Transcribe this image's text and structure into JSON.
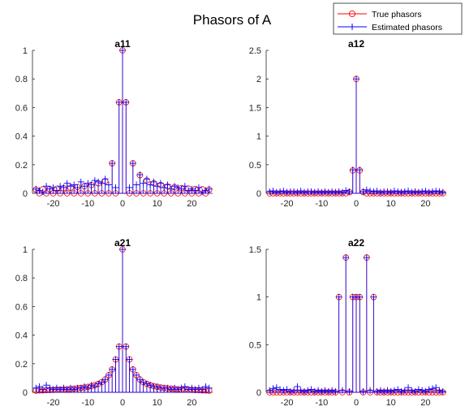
{
  "figure": {
    "title": "Phasors of A",
    "legend": {
      "placement": "top-right",
      "entries": [
        "True phasors",
        "Estimated phasors"
      ]
    },
    "colors": {
      "true": "#ff0000",
      "estimated": "#0000ff",
      "axis": "#262626"
    }
  },
  "chart_data": [
    {
      "type": "stem",
      "title": "a11",
      "xlabel": "",
      "ylabel": "",
      "xlim": [
        -26,
        26
      ],
      "ylim": [
        0,
        1
      ],
      "xticks": [
        -20,
        -10,
        0,
        10,
        20
      ],
      "yticks": [
        0,
        0.2,
        0.4,
        0.6,
        0.8,
        1
      ],
      "ytick_labels": [
        "0",
        "0.2",
        "0.4",
        "0.6",
        "0.8",
        "1"
      ],
      "grid": false,
      "series": [
        {
          "name": "True phasors",
          "marker": "circle",
          "x": [
            -25,
            -24,
            -23,
            -22,
            -21,
            -20,
            -19,
            -18,
            -17,
            -16,
            -15,
            -14,
            -13,
            -12,
            -11,
            -10,
            -9,
            -8,
            -7,
            -6,
            -5,
            -4,
            -3,
            -2,
            -1,
            0,
            1,
            2,
            3,
            4,
            5,
            6,
            7,
            8,
            9,
            10,
            11,
            12,
            13,
            14,
            15,
            16,
            17,
            18,
            19,
            20,
            21,
            22,
            23,
            24,
            25
          ],
          "y": [
            0.026,
            0,
            0.028,
            0,
            0.03,
            0,
            0.032,
            0,
            0.036,
            0,
            0.039,
            0,
            0.044,
            0,
            0.05,
            0,
            0.058,
            0,
            0.07,
            0,
            0.085,
            0,
            0.21,
            0,
            0.637,
            1,
            0.637,
            0,
            0.21,
            0,
            0.127,
            0,
            0.09,
            0,
            0.07,
            0,
            0.058,
            0,
            0.049,
            0,
            0.042,
            0,
            0.037,
            0,
            0.033,
            0,
            0.03,
            0,
            0.028,
            0,
            0.026
          ]
        },
        {
          "name": "Estimated phasors",
          "marker": "plus",
          "x": [
            -25,
            -24,
            -23,
            -22,
            -21,
            -20,
            -19,
            -18,
            -17,
            -16,
            -15,
            -14,
            -13,
            -12,
            -11,
            -10,
            -9,
            -8,
            -7,
            -6,
            -5,
            -4,
            -3,
            -2,
            -1,
            0,
            1,
            2,
            3,
            4,
            5,
            6,
            7,
            8,
            9,
            10,
            11,
            12,
            13,
            14,
            15,
            16,
            17,
            18,
            19,
            20,
            21,
            22,
            23,
            24,
            25
          ],
          "y": [
            0.03,
            0.02,
            0.01,
            0.05,
            0.03,
            0.04,
            0.02,
            0.05,
            0.04,
            0.07,
            0.05,
            0.06,
            0.04,
            0.08,
            0.05,
            0.07,
            0.06,
            0.09,
            0.08,
            0.07,
            0.1,
            0.06,
            0.21,
            0.04,
            0.637,
            1,
            0.637,
            0.04,
            0.21,
            0.06,
            0.13,
            0.07,
            0.1,
            0.06,
            0.08,
            0.05,
            0.07,
            0.04,
            0.06,
            0.03,
            0.05,
            0.04,
            0.03,
            0.05,
            0.02,
            0.03,
            0.02,
            0.04,
            0.01,
            0.02,
            0.03
          ]
        }
      ]
    },
    {
      "type": "stem",
      "title": "a12",
      "xlabel": "",
      "ylabel": "",
      "xlim": [
        -26,
        26
      ],
      "ylim": [
        0,
        2.5
      ],
      "xticks": [
        -20,
        -10,
        0,
        10,
        20
      ],
      "yticks": [
        0,
        0.5,
        1,
        1.5,
        2,
        2.5
      ],
      "ytick_labels": [
        "0",
        "0.5",
        "1",
        "1.5",
        "2",
        "2.5"
      ],
      "grid": false,
      "series": [
        {
          "name": "True phasors",
          "marker": "circle",
          "x": [
            -25,
            -24,
            -23,
            -22,
            -21,
            -20,
            -19,
            -18,
            -17,
            -16,
            -15,
            -14,
            -13,
            -12,
            -11,
            -10,
            -9,
            -8,
            -7,
            -6,
            -5,
            -4,
            -3,
            -2,
            -1,
            0,
            1,
            2,
            3,
            4,
            5,
            6,
            7,
            8,
            9,
            10,
            11,
            12,
            13,
            14,
            15,
            16,
            17,
            18,
            19,
            20,
            21,
            22,
            23,
            24,
            25
          ],
          "y": [
            0,
            0,
            0,
            0,
            0,
            0,
            0,
            0,
            0,
            0,
            0,
            0,
            0,
            0,
            0,
            0,
            0,
            0,
            0,
            0,
            0,
            0,
            0,
            0.02,
            0.4,
            2,
            0.4,
            0.02,
            0,
            0,
            0,
            0,
            0,
            0,
            0,
            0,
            0,
            0,
            0,
            0,
            0,
            0,
            0,
            0,
            0,
            0,
            0,
            0,
            0,
            0,
            0
          ]
        },
        {
          "name": "Estimated phasors",
          "marker": "plus",
          "x": [
            -25,
            -24,
            -23,
            -22,
            -21,
            -20,
            -19,
            -18,
            -17,
            -16,
            -15,
            -14,
            -13,
            -12,
            -11,
            -10,
            -9,
            -8,
            -7,
            -6,
            -5,
            -4,
            -3,
            -2,
            -1,
            0,
            1,
            2,
            3,
            4,
            5,
            6,
            7,
            8,
            9,
            10,
            11,
            12,
            13,
            14,
            15,
            16,
            17,
            18,
            19,
            20,
            21,
            22,
            23,
            24,
            25
          ],
          "y": [
            0.03,
            0.04,
            0.02,
            0.03,
            0.04,
            0.02,
            0.03,
            0.03,
            0.02,
            0.04,
            0.02,
            0.03,
            0.03,
            0.02,
            0.03,
            0.02,
            0.03,
            0.02,
            0.03,
            0.02,
            0.03,
            0.02,
            0.05,
            0.03,
            0.41,
            2,
            0.41,
            0.03,
            0.06,
            0.04,
            0.03,
            0.04,
            0.02,
            0.03,
            0.03,
            0.02,
            0.04,
            0.03,
            0.02,
            0.03,
            0.04,
            0.02,
            0.03,
            0.02,
            0.03,
            0.04,
            0.02,
            0.03,
            0.04,
            0.03,
            0.02
          ]
        }
      ]
    },
    {
      "type": "stem",
      "title": "a21",
      "xlabel": "",
      "ylabel": "",
      "xlim": [
        -26,
        26
      ],
      "ylim": [
        0,
        1
      ],
      "xticks": [
        -20,
        -10,
        0,
        10,
        20
      ],
      "yticks": [
        0,
        0.2,
        0.4,
        0.6,
        0.8,
        1
      ],
      "ytick_labels": [
        "0",
        "0.2",
        "0.4",
        "0.6",
        "0.8",
        "1"
      ],
      "grid": false,
      "series": [
        {
          "name": "True phasors",
          "marker": "circle",
          "x": [
            -25,
            -24,
            -23,
            -22,
            -21,
            -20,
            -19,
            -18,
            -17,
            -16,
            -15,
            -14,
            -13,
            -12,
            -11,
            -10,
            -9,
            -8,
            -7,
            -6,
            -5,
            -4,
            -3,
            -2,
            -1,
            0,
            1,
            2,
            3,
            4,
            5,
            6,
            7,
            8,
            9,
            10,
            11,
            12,
            13,
            14,
            15,
            16,
            17,
            18,
            19,
            20,
            21,
            22,
            23,
            24,
            25
          ],
          "y": [
            0.012,
            0.013,
            0.014,
            0.015,
            0.016,
            0.017,
            0.018,
            0.019,
            0.02,
            0.022,
            0.024,
            0.026,
            0.028,
            0.031,
            0.034,
            0.038,
            0.043,
            0.05,
            0.059,
            0.071,
            0.09,
            0.12,
            0.16,
            0.23,
            0.32,
            1,
            0.32,
            0.23,
            0.16,
            0.12,
            0.09,
            0.071,
            0.059,
            0.05,
            0.043,
            0.038,
            0.034,
            0.031,
            0.028,
            0.026,
            0.024,
            0.022,
            0.02,
            0.019,
            0.018,
            0.017,
            0.016,
            0.015,
            0.014,
            0.013,
            0.012
          ]
        },
        {
          "name": "Estimated phasors",
          "marker": "plus",
          "x": [
            -25,
            -24,
            -23,
            -22,
            -21,
            -20,
            -19,
            -18,
            -17,
            -16,
            -15,
            -14,
            -13,
            -12,
            -11,
            -10,
            -9,
            -8,
            -7,
            -6,
            -5,
            -4,
            -3,
            -2,
            -1,
            0,
            1,
            2,
            3,
            4,
            5,
            6,
            7,
            8,
            9,
            10,
            11,
            12,
            13,
            14,
            15,
            16,
            17,
            18,
            19,
            20,
            21,
            22,
            23,
            24,
            25
          ],
          "y": [
            0.03,
            0.04,
            0.02,
            0.05,
            0.03,
            0.02,
            0.03,
            0.02,
            0.03,
            0.02,
            0.03,
            0.02,
            0.03,
            0.03,
            0.04,
            0.03,
            0.05,
            0.04,
            0.06,
            0.07,
            0.09,
            0.12,
            0.16,
            0.23,
            0.32,
            1,
            0.32,
            0.23,
            0.16,
            0.12,
            0.09,
            0.07,
            0.06,
            0.05,
            0.04,
            0.04,
            0.03,
            0.03,
            0.03,
            0.02,
            0.03,
            0.02,
            0.03,
            0.04,
            0.02,
            0.03,
            0.02,
            0.03,
            0.02,
            0.04,
            0.03
          ]
        }
      ]
    },
    {
      "type": "stem",
      "title": "a22",
      "xlabel": "",
      "ylabel": "",
      "xlim": [
        -26,
        26
      ],
      "ylim": [
        0,
        1.5
      ],
      "xticks": [
        -20,
        -10,
        0,
        10,
        20
      ],
      "yticks": [
        0,
        0.5,
        1,
        1.5
      ],
      "ytick_labels": [
        "0",
        "0.5",
        "1",
        "1.5"
      ],
      "grid": false,
      "series": [
        {
          "name": "True phasors",
          "marker": "circle",
          "x": [
            -25,
            -24,
            -23,
            -22,
            -21,
            -20,
            -19,
            -18,
            -17,
            -16,
            -15,
            -14,
            -13,
            -12,
            -11,
            -10,
            -9,
            -8,
            -7,
            -6,
            -5,
            -4,
            -3,
            -2,
            -1,
            0,
            1,
            2,
            3,
            4,
            5,
            6,
            7,
            8,
            9,
            10,
            11,
            12,
            13,
            14,
            15,
            16,
            17,
            18,
            19,
            20,
            21,
            22,
            23,
            24,
            25
          ],
          "y": [
            0,
            0,
            0,
            0,
            0,
            0,
            0,
            0,
            0,
            0,
            0,
            0,
            0,
            0,
            0,
            0,
            0,
            0,
            0,
            0,
            1,
            0,
            1.414,
            0,
            1,
            1,
            1,
            0,
            1.414,
            0,
            1,
            0,
            0,
            0,
            0,
            0,
            0,
            0,
            0,
            0,
            0,
            0,
            0,
            0,
            0,
            0,
            0,
            0,
            0,
            0,
            0
          ]
        },
        {
          "name": "Estimated phasors",
          "marker": "plus",
          "x": [
            -25,
            -24,
            -23,
            -22,
            -21,
            -20,
            -19,
            -18,
            -17,
            -16,
            -15,
            -14,
            -13,
            -12,
            -11,
            -10,
            -9,
            -8,
            -7,
            -6,
            -5,
            -4,
            -3,
            -2,
            -1,
            0,
            1,
            2,
            3,
            4,
            5,
            6,
            7,
            8,
            9,
            10,
            11,
            12,
            13,
            14,
            15,
            16,
            17,
            18,
            19,
            20,
            21,
            22,
            23,
            24,
            25
          ],
          "y": [
            0.02,
            0.04,
            0.05,
            0.03,
            0.02,
            0.03,
            0.01,
            0.02,
            0.06,
            0.02,
            0.01,
            0.02,
            0.03,
            0.01,
            0.02,
            0.01,
            0.02,
            0.01,
            0.02,
            0.01,
            1,
            0.02,
            1.414,
            0.01,
            1,
            1,
            1,
            0.01,
            1.414,
            0.02,
            1,
            0.01,
            0.02,
            0.01,
            0.02,
            0.01,
            0.02,
            0.03,
            0.01,
            0.02,
            0.05,
            0.02,
            0.01,
            0.03,
            0.02,
            0.01,
            0.03,
            0.04,
            0.05,
            0.02,
            0.01
          ]
        }
      ]
    }
  ]
}
